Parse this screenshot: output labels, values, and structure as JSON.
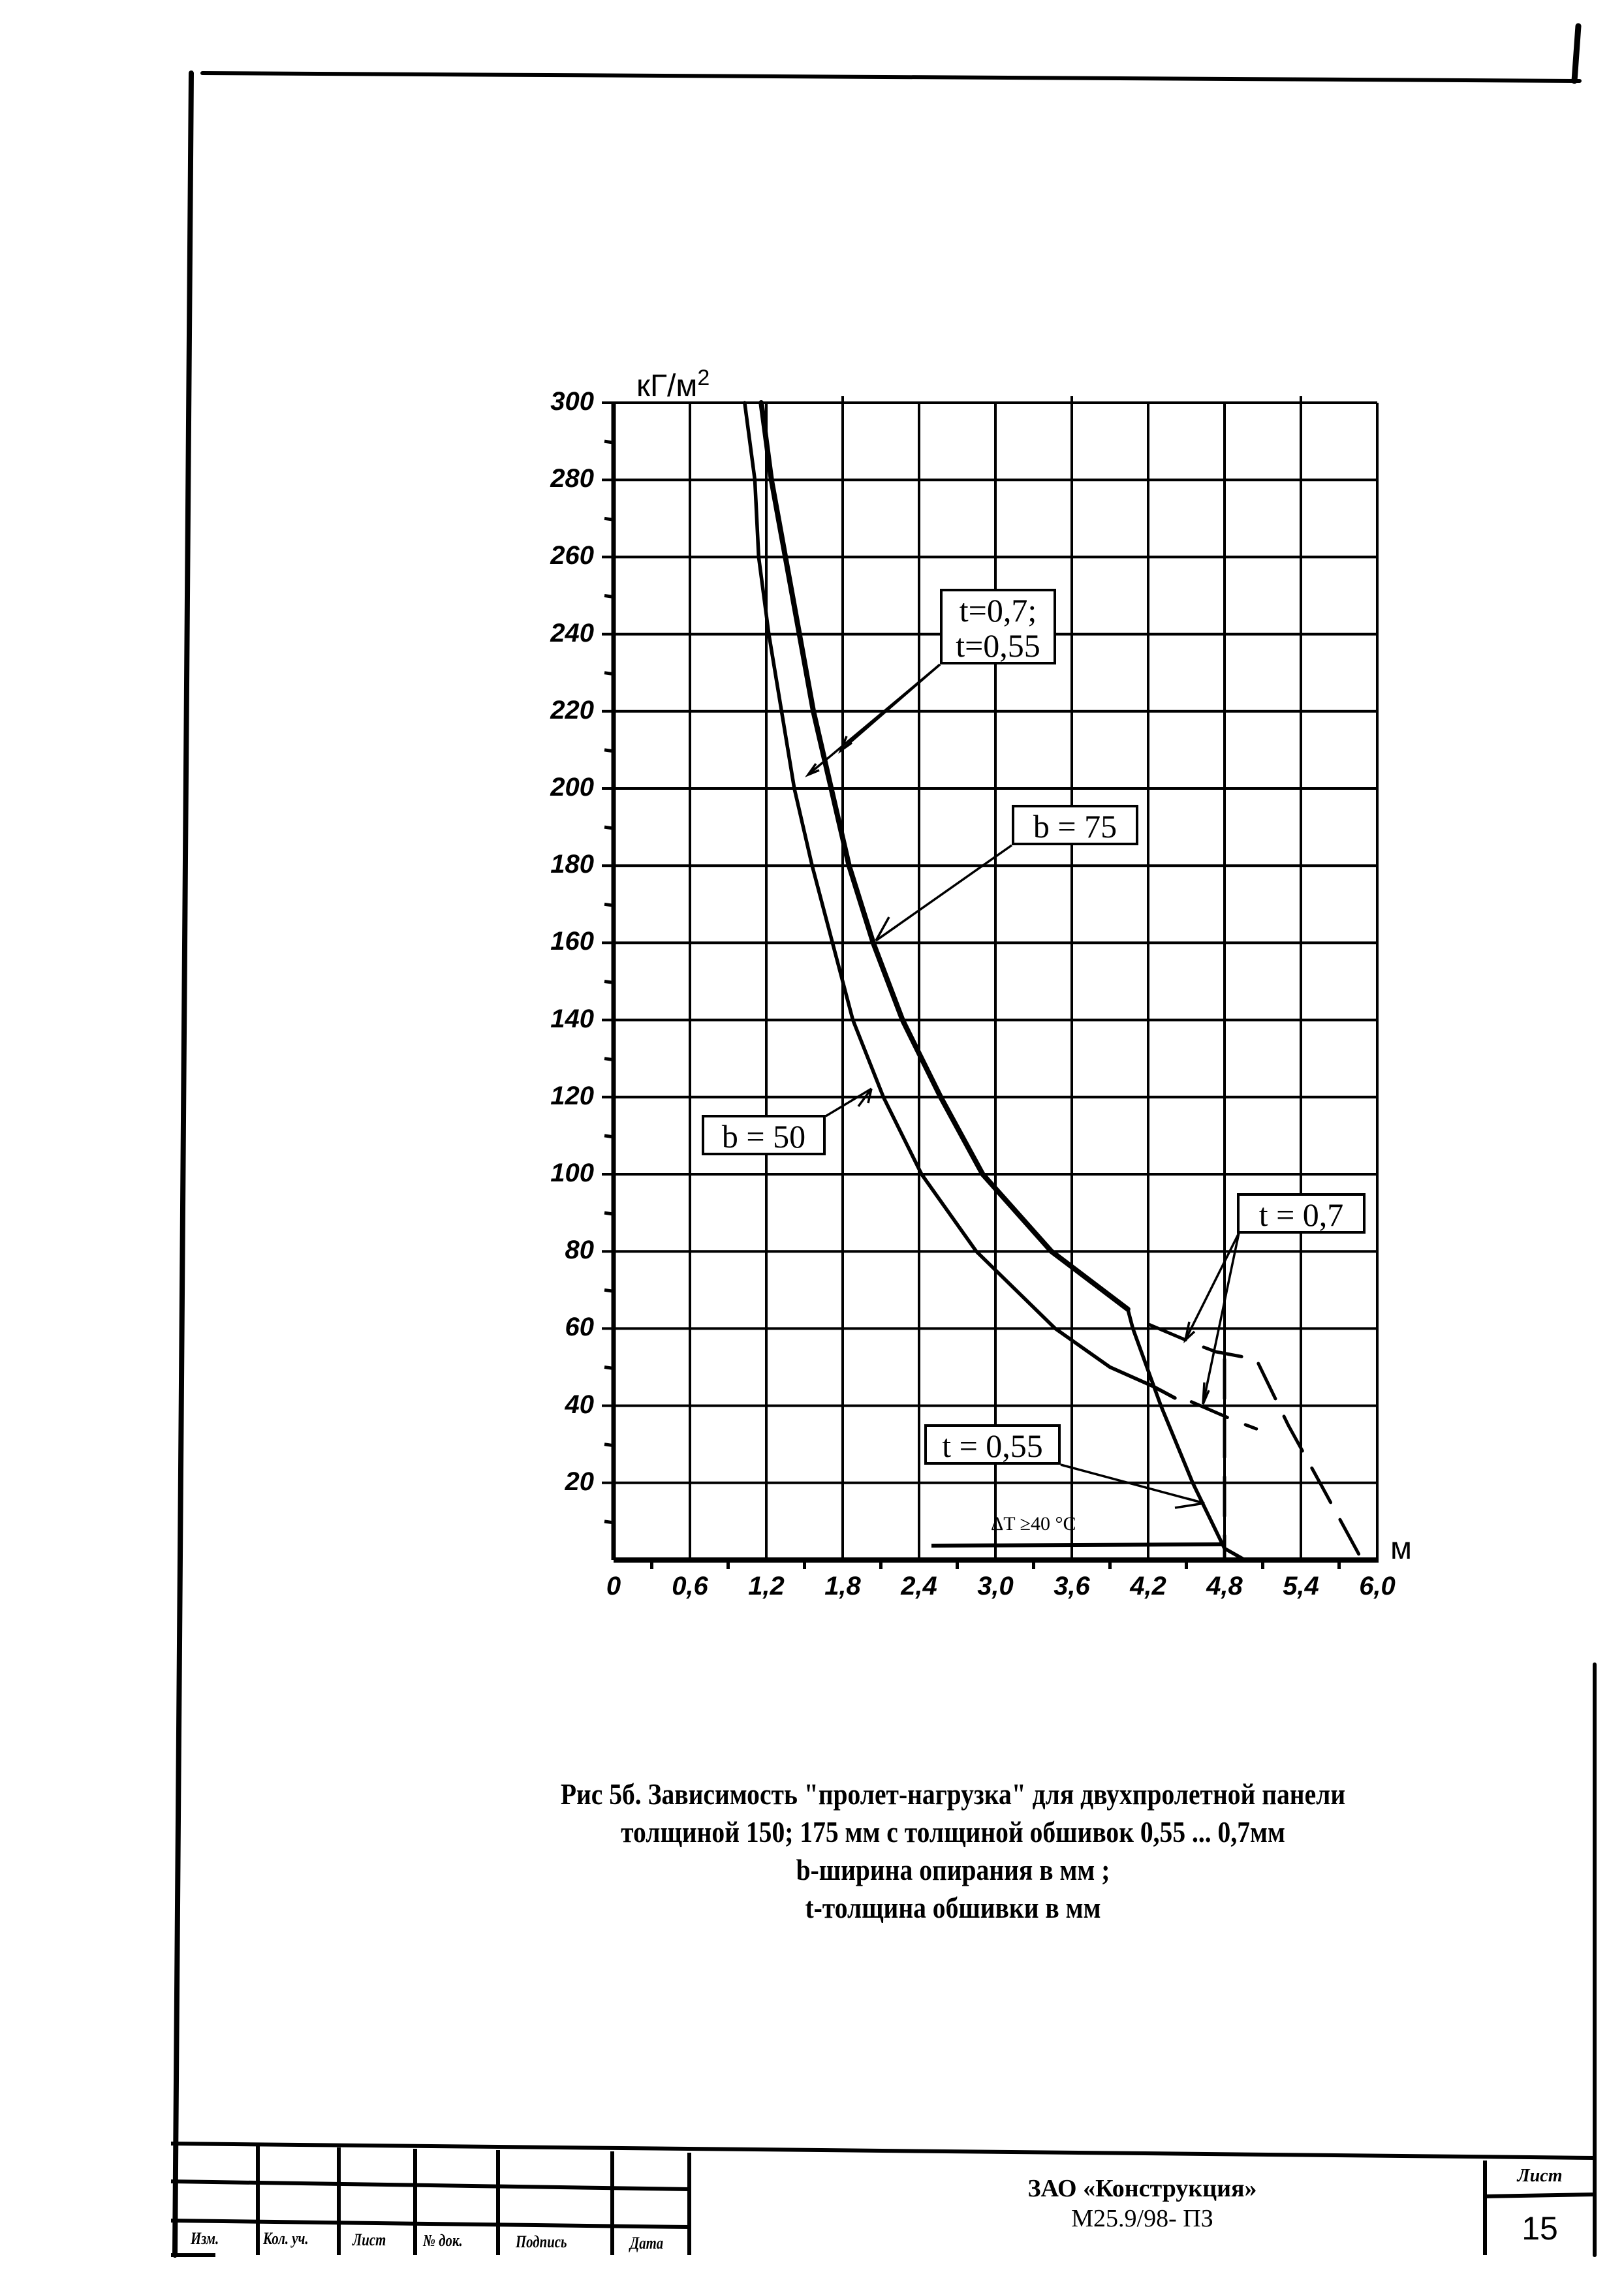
{
  "document": {
    "caption_lines": [
      "Рис 5б. Зависимость \"пролет-нагрузка\" для двухпролетной панели",
      "толщиной 150; 175 мм с толщиной обшивок 0,55 ... 0,7мм",
      "b-ширина опирания в мм ;",
      "t-толщина обшивки в мм"
    ],
    "title_block": {
      "headers": [
        "Изм.",
        "Кол. уч.",
        "Лист",
        "№ док.",
        "Подпись",
        "Дата"
      ],
      "organization": "ЗАО «Конструкция»",
      "doc_code": "М25.9/98- ПЗ",
      "sheet_label": "Лист",
      "sheet_number": "15"
    }
  },
  "chart_data": {
    "type": "line",
    "title": "Рис 5б. Зависимость \"пролет-нагрузка\" для двухпролетной панели толщиной 150; 175 мм с толщиной обшивок 0,55 ... 0,7мм",
    "xlabel": "м",
    "ylabel": "кГ/м²",
    "xlim": [
      0,
      6.0
    ],
    "ylim": [
      0,
      300
    ],
    "x_ticks": [
      "0",
      "0,6",
      "1,2",
      "1,8",
      "2,4",
      "3,0",
      "3,6",
      "4,2",
      "4,8",
      "5,4",
      "6,0"
    ],
    "y_ticks": [
      "20",
      "40",
      "60",
      "80",
      "100",
      "120",
      "140",
      "160",
      "180",
      "200",
      "220",
      "240",
      "260",
      "280",
      "300"
    ],
    "grid": true,
    "series": [
      {
        "name": "b = 50 (t=0,7; t=0,55)",
        "style": "solid",
        "points": [
          [
            1.03,
            300
          ],
          [
            1.11,
            280
          ],
          [
            1.14,
            260
          ],
          [
            1.22,
            240
          ],
          [
            1.32,
            220
          ],
          [
            1.42,
            200
          ],
          [
            1.56,
            180
          ],
          [
            1.72,
            160
          ],
          [
            1.88,
            140
          ],
          [
            2.12,
            120
          ],
          [
            2.42,
            100
          ],
          [
            2.85,
            80
          ],
          [
            3.47,
            60
          ],
          [
            3.9,
            50
          ],
          [
            4.24,
            45
          ],
          [
            4.41,
            42
          ]
        ]
      },
      {
        "name": "b = 75 (t=0,7; t=0,55)",
        "style": "solid-thick",
        "points": [
          [
            1.16,
            300
          ],
          [
            1.24,
            280
          ],
          [
            1.35,
            260
          ],
          [
            1.46,
            240
          ],
          [
            1.57,
            220
          ],
          [
            1.71,
            200
          ],
          [
            1.85,
            180
          ],
          [
            2.04,
            160
          ],
          [
            2.27,
            140
          ],
          [
            2.57,
            120
          ],
          [
            2.9,
            100
          ],
          [
            3.44,
            80
          ],
          [
            4.04,
            65
          ]
        ]
      },
      {
        "name": "t = 0,55 (ΔT ≥40 °C branch)",
        "style": "solid",
        "points": [
          [
            4.04,
            65
          ],
          [
            4.08,
            60
          ],
          [
            4.3,
            40
          ],
          [
            4.55,
            20
          ],
          [
            4.8,
            3
          ],
          [
            4.96,
            0
          ]
        ]
      },
      {
        "name": "t = 0,7 (dashed branch)",
        "style": "dashed",
        "points": [
          [
            4.21,
            61
          ],
          [
            4.57,
            56
          ],
          [
            4.73,
            54
          ],
          [
            5.05,
            52
          ],
          [
            5.3,
            35
          ],
          [
            5.55,
            20
          ],
          [
            5.88,
            0
          ]
        ]
      },
      {
        "name": "t = 0,7 lower dashed",
        "style": "dashed",
        "points": [
          [
            4.54,
            41
          ],
          [
            4.89,
            36
          ],
          [
            5.05,
            34
          ]
        ]
      },
      {
        "name": "x = 4,8 limit",
        "style": "dashed",
        "points": [
          [
            4.8,
            52
          ],
          [
            4.8,
            0
          ]
        ]
      }
    ],
    "annotations": [
      {
        "text": "t=0,7;\nt=0,55",
        "target": "b=50 and b=75 curves near y≈205"
      },
      {
        "text": "b = 75",
        "target": "b=75 curve near y≈160"
      },
      {
        "text": "b = 50",
        "target": "b=50 curve near y≈125"
      },
      {
        "text": "t = 0,7",
        "target": "dashed branches near x≈4,5"
      },
      {
        "text": "t = 0,55",
        "target": "solid branch near x≈4,6, y≈15"
      },
      {
        "text": "ΔT ≥40 °C",
        "target": "horizontal line y≈4 from x≈2,5 to 4,8"
      }
    ]
  },
  "labels": {
    "y_unit": "кГ/м",
    "y_unit_sup": "2",
    "x_unit": "м",
    "box_t_both_1": "t=0,7;",
    "box_t_both_2": "t=0,55",
    "box_b75": "b = 75",
    "box_b50": "b = 50",
    "box_t07": "t = 0,7",
    "box_t055": "t = 0,55",
    "delta_t": "ΔT ≥40 °C"
  }
}
